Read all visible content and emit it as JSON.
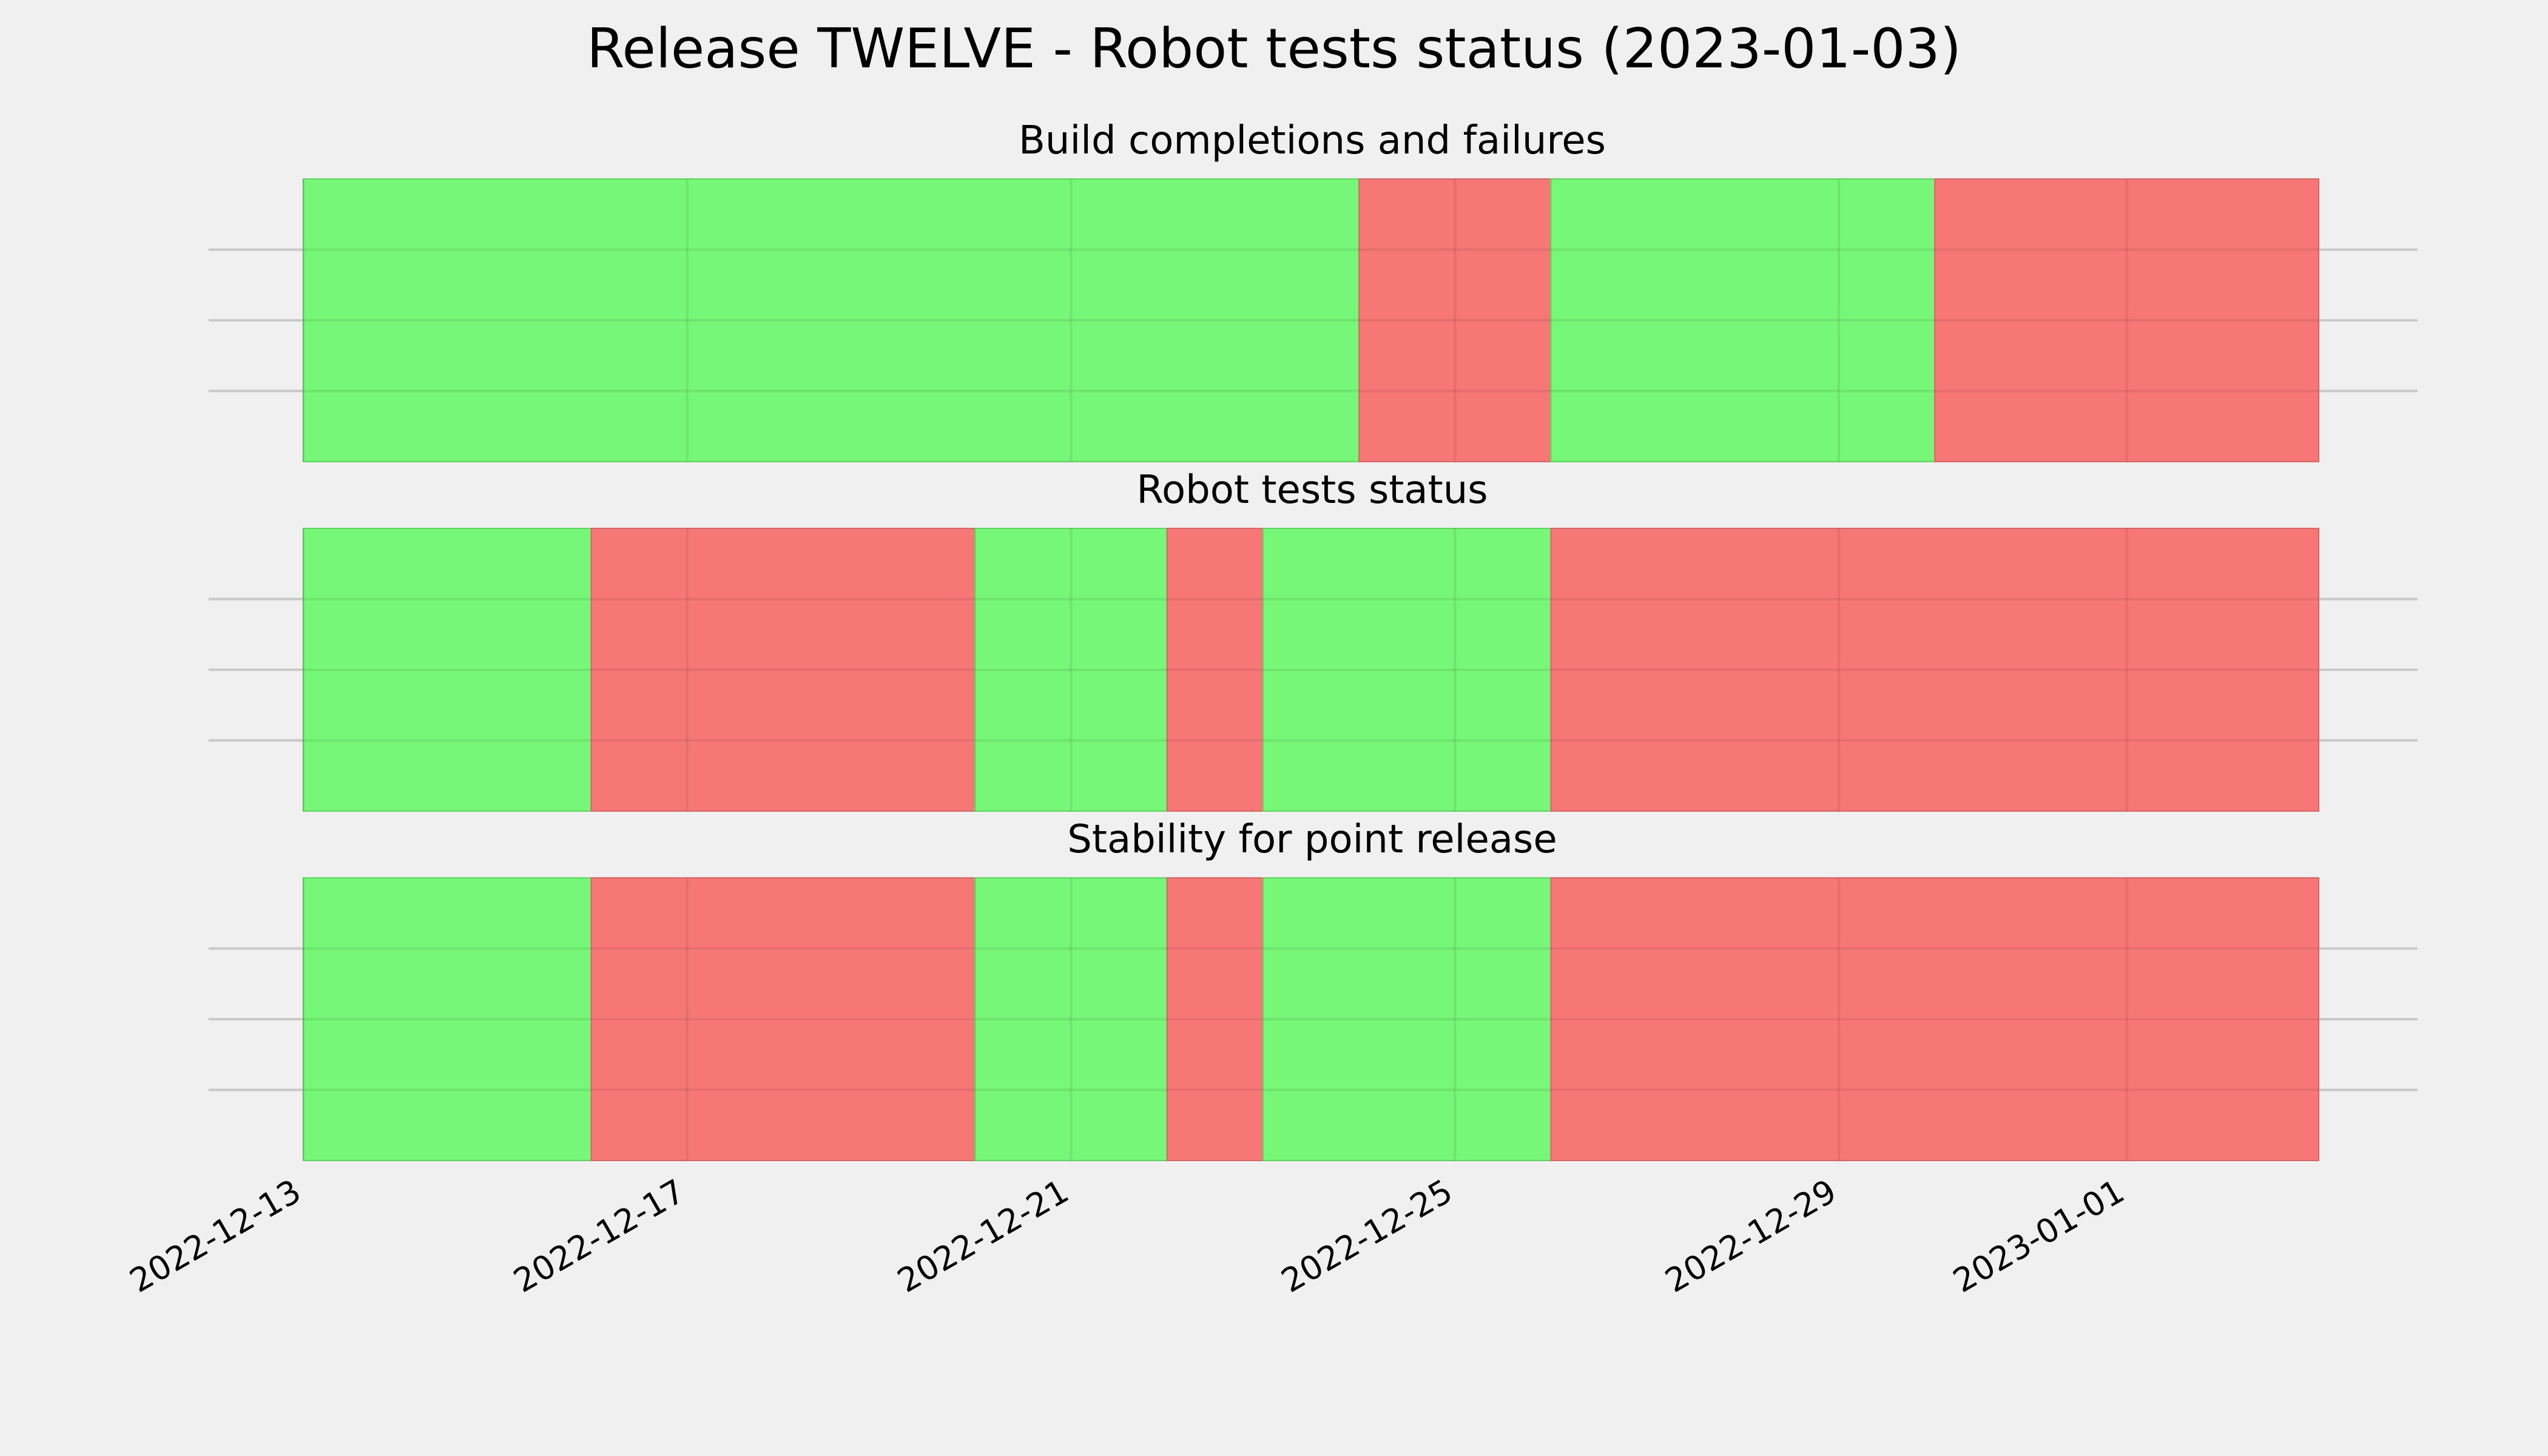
{
  "figure": {
    "title": "Release TWELVE - Robot tests status (2023-01-03)"
  },
  "colors": {
    "background": "#f0f0f0",
    "pass": "#77f777",
    "fail": "#f77777",
    "grid": "#c8c8c8"
  },
  "chart_data": {
    "type": "timeline",
    "x_axis": {
      "type": "date",
      "range": [
        "2022-12-13",
        "2023-01-03"
      ],
      "tick_labels": [
        "2022-12-13",
        "2022-12-17",
        "2022-12-21",
        "2022-12-25",
        "2022-12-29",
        "2023-01-01"
      ]
    },
    "grid": true,
    "panels": [
      {
        "title": "Build completions and failures",
        "segments": [
          {
            "start": "2022-12-13",
            "end": "2022-12-24",
            "status": "pass"
          },
          {
            "start": "2022-12-24",
            "end": "2022-12-26",
            "status": "fail"
          },
          {
            "start": "2022-12-26",
            "end": "2022-12-30",
            "status": "pass"
          },
          {
            "start": "2022-12-30",
            "end": "2023-01-03",
            "status": "fail"
          }
        ]
      },
      {
        "title": "Robot tests status",
        "segments": [
          {
            "start": "2022-12-13",
            "end": "2022-12-16",
            "status": "pass"
          },
          {
            "start": "2022-12-16",
            "end": "2022-12-20",
            "status": "fail"
          },
          {
            "start": "2022-12-20",
            "end": "2022-12-22",
            "status": "pass"
          },
          {
            "start": "2022-12-22",
            "end": "2022-12-23",
            "status": "fail"
          },
          {
            "start": "2022-12-23",
            "end": "2022-12-26",
            "status": "pass"
          },
          {
            "start": "2022-12-26",
            "end": "2023-01-03",
            "status": "fail"
          }
        ]
      },
      {
        "title": "Stability for point release",
        "segments": [
          {
            "start": "2022-12-13",
            "end": "2022-12-16",
            "status": "pass"
          },
          {
            "start": "2022-12-16",
            "end": "2022-12-20",
            "status": "fail"
          },
          {
            "start": "2022-12-20",
            "end": "2022-12-22",
            "status": "pass"
          },
          {
            "start": "2022-12-22",
            "end": "2022-12-23",
            "status": "fail"
          },
          {
            "start": "2022-12-23",
            "end": "2022-12-26",
            "status": "pass"
          },
          {
            "start": "2022-12-26",
            "end": "2023-01-03",
            "status": "fail"
          }
        ]
      }
    ]
  }
}
